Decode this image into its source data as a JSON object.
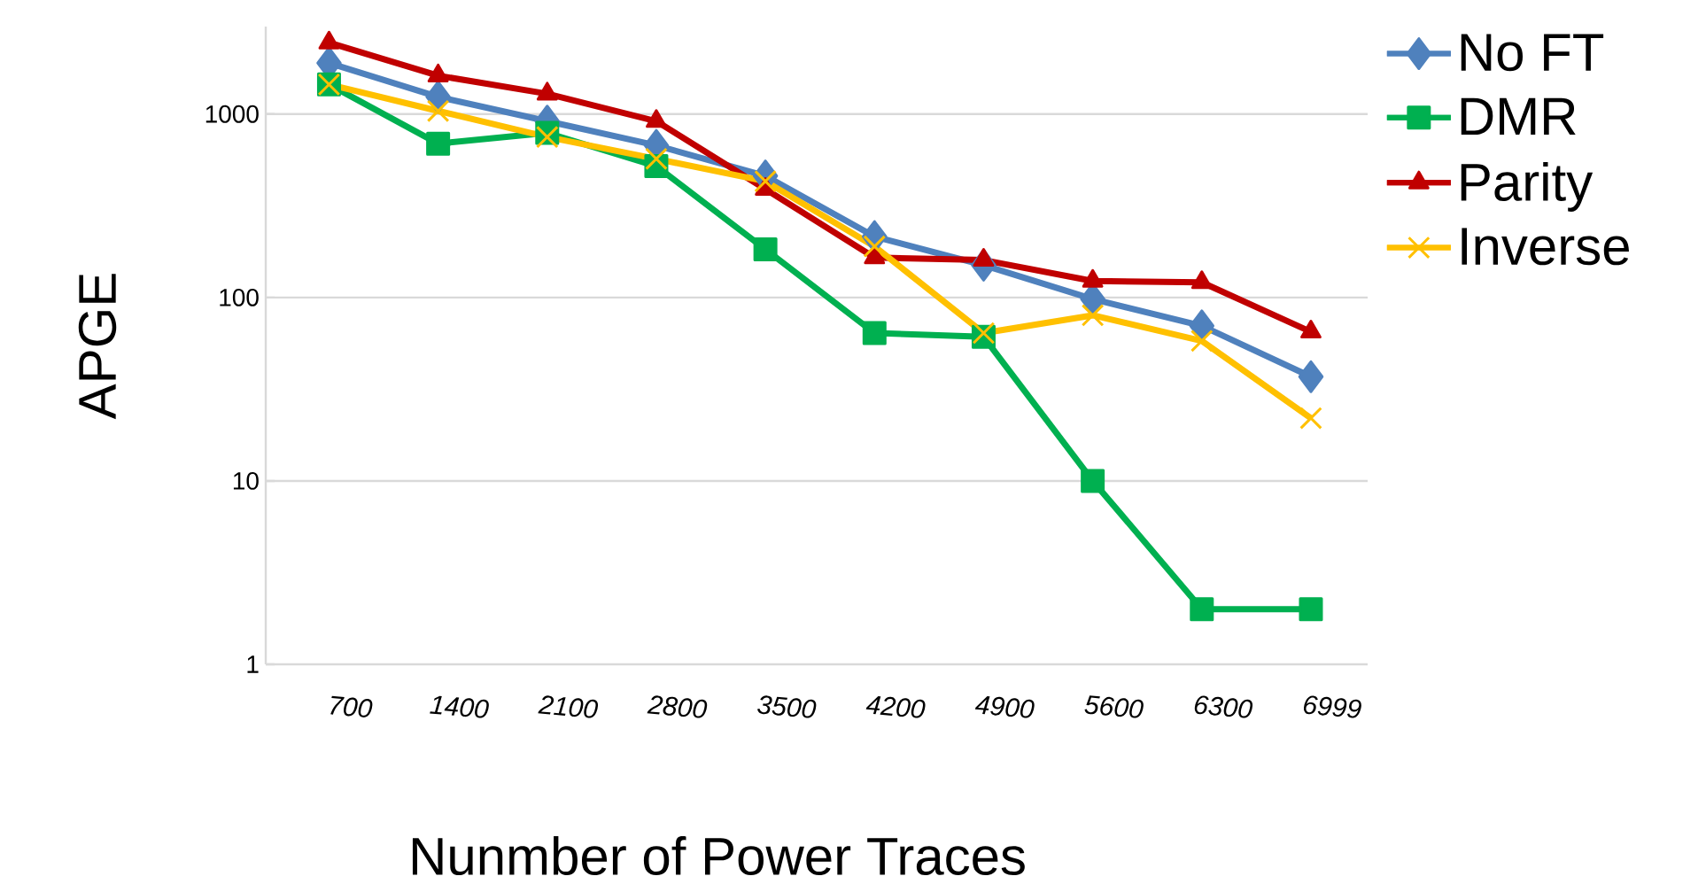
{
  "chart_data": {
    "type": "line",
    "xlabel": "Nunmber of Power Traces",
    "ylabel": "APGE",
    "categories": [
      "700",
      "1400",
      "2100",
      "2800",
      "3500",
      "4200",
      "4900",
      "5600",
      "6300",
      "6999"
    ],
    "series": [
      {
        "name": "No FT",
        "color": "#4f81bd",
        "marker": "diamond",
        "values": [
          1900,
          1240,
          915,
          675,
          460,
          215,
          150,
          98,
          70,
          37
        ]
      },
      {
        "name": "DMR",
        "color": "#00b050",
        "marker": "square",
        "values": [
          1450,
          690,
          790,
          520,
          183,
          64,
          61,
          10,
          2,
          2
        ]
      },
      {
        "name": "Parity",
        "color": "#c00000",
        "marker": "triangle",
        "values": [
          2450,
          1620,
          1290,
          915,
          390,
          165,
          160,
          123,
          121,
          65
        ]
      },
      {
        "name": "Inverse",
        "color": "#ffc000",
        "marker": "cross",
        "values": [
          1450,
          1040,
          750,
          570,
          430,
          190,
          64,
          80,
          58,
          22
        ]
      }
    ],
    "log": "y",
    "ylim": [
      1,
      3000
    ],
    "yticks": [
      1,
      10,
      100,
      1000
    ],
    "grid": "y",
    "legend": "right",
    "line_style": "solid"
  }
}
